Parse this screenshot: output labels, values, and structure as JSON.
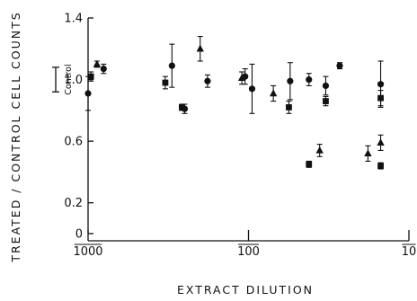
{
  "chart_data": {
    "type": "scatter",
    "title": "",
    "xlabel": "EXTRACT DILUTION",
    "ylabel": "TREATED / CONTROL CELL COUNTS",
    "x_scale": "log-reversed",
    "xlim": [
      1000,
      10
    ],
    "ylim": [
      0,
      1.4
    ],
    "xticks": [
      {
        "value": 1000,
        "label": "1000"
      },
      {
        "value": 100,
        "label": "100"
      },
      {
        "value": 10,
        "label": "10"
      }
    ],
    "yticks": [
      {
        "value": 0,
        "label": "0"
      },
      {
        "value": 0.2,
        "label": "0.2"
      },
      {
        "value": 0.6,
        "label": "0.6"
      },
      {
        "value": 1.0,
        "label": "1.0"
      },
      {
        "value": 1.4,
        "label": "1.4"
      }
    ],
    "control_band": {
      "label": "Control",
      "low": 0.92,
      "high": 1.08
    },
    "grid": false,
    "legend": "none",
    "series": [
      {
        "marker": "circle",
        "points": [
          {
            "x": 1000,
            "y": 0.91,
            "err": 0.11
          },
          {
            "x": 800,
            "y": 1.07,
            "err": 0.03
          },
          {
            "x": 300,
            "y": 1.09,
            "err": 0.14
          },
          {
            "x": 250,
            "y": 0.81,
            "err": 0.03
          },
          {
            "x": 180,
            "y": 0.99,
            "err": 0.04
          },
          {
            "x": 105,
            "y": 1.02,
            "err": 0.05
          },
          {
            "x": 95,
            "y": 0.94,
            "err": 0.16
          },
          {
            "x": 55,
            "y": 0.99,
            "err": 0.12
          },
          {
            "x": 42,
            "y": 1.0,
            "err": 0.04
          },
          {
            "x": 33,
            "y": 0.96,
            "err": 0.06
          },
          {
            "x": 27,
            "y": 1.09,
            "err": 0.02
          },
          {
            "x": 15,
            "y": 0.97,
            "err": 0.15
          }
        ]
      },
      {
        "marker": "square",
        "points": [
          {
            "x": 960,
            "y": 1.02,
            "err": 0.03
          },
          {
            "x": 330,
            "y": 0.98,
            "err": 0.04
          },
          {
            "x": 260,
            "y": 0.82,
            "err": 0.02
          },
          {
            "x": 56,
            "y": 0.82,
            "err": 0.04
          },
          {
            "x": 42,
            "y": 0.45,
            "err": 0.02
          },
          {
            "x": 33,
            "y": 0.86,
            "err": 0.03
          },
          {
            "x": 15,
            "y": 0.44,
            "err": 0.02
          },
          {
            "x": 15,
            "y": 0.88,
            "err": 0.05
          }
        ]
      },
      {
        "marker": "triangle",
        "points": [
          {
            "x": 880,
            "y": 1.1,
            "err": 0.02
          },
          {
            "x": 200,
            "y": 1.2,
            "err": 0.08
          },
          {
            "x": 110,
            "y": 1.01,
            "err": 0.04
          },
          {
            "x": 70,
            "y": 0.91,
            "err": 0.05
          },
          {
            "x": 36,
            "y": 0.54,
            "err": 0.04
          },
          {
            "x": 18,
            "y": 0.52,
            "err": 0.05
          },
          {
            "x": 15,
            "y": 0.59,
            "err": 0.05
          }
        ]
      }
    ]
  }
}
